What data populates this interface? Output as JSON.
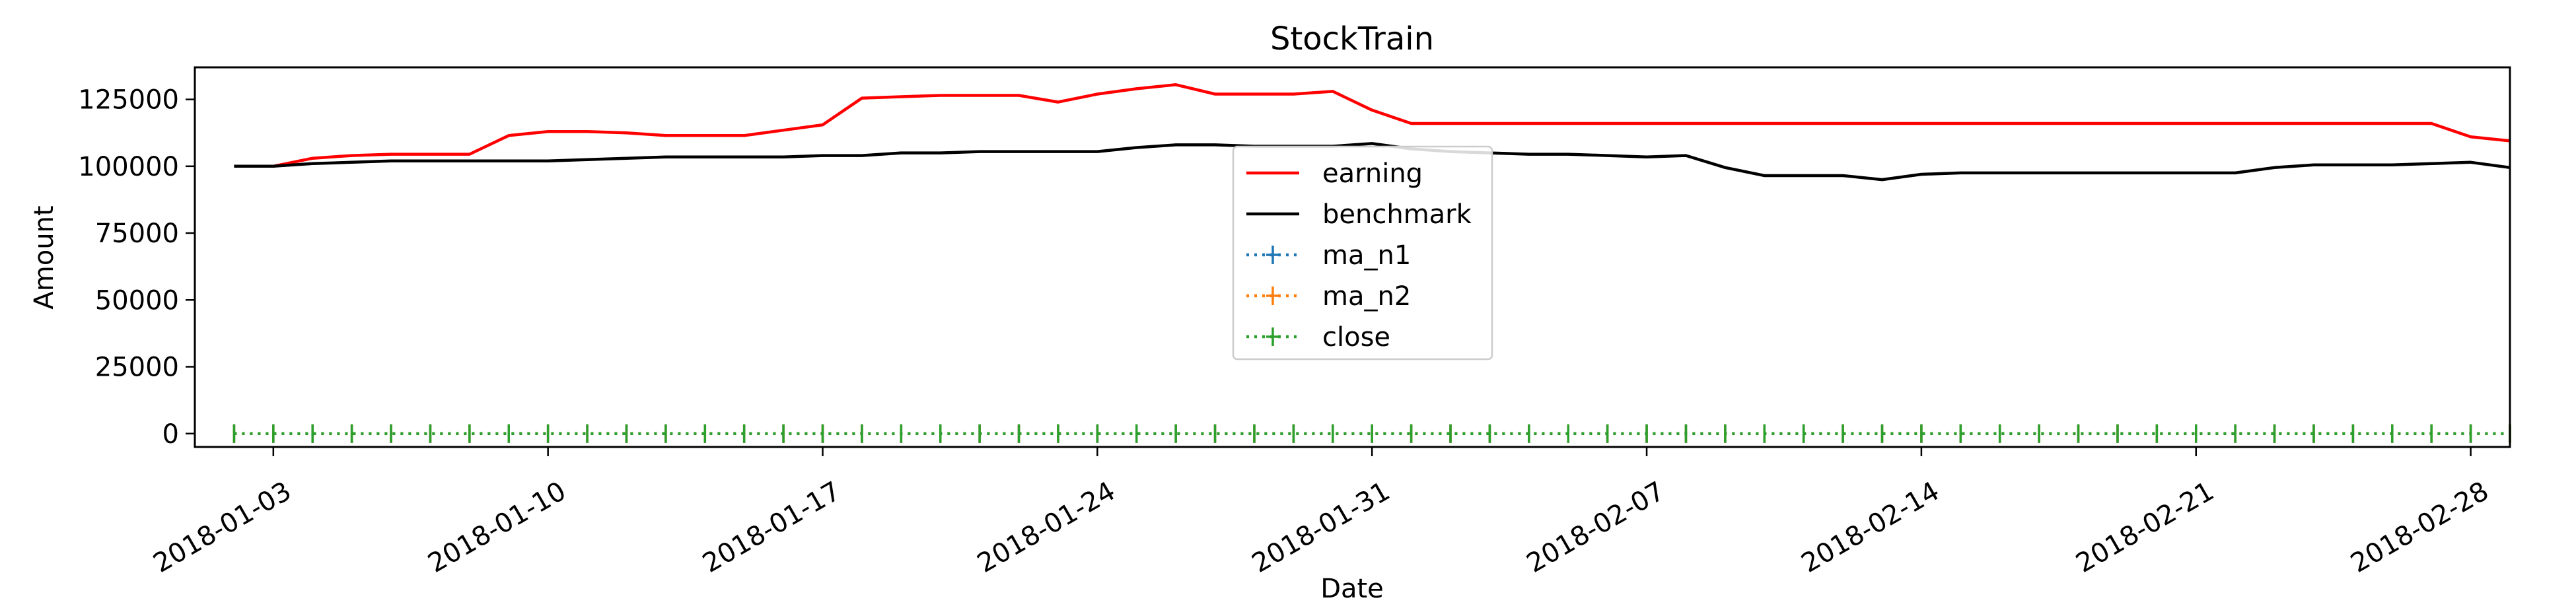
{
  "chart_data": {
    "type": "line",
    "title": "StockTrain",
    "xlabel": "Date",
    "ylabel": "Amount",
    "x_ticks": [
      "2018-01-03",
      "2018-01-10",
      "2018-01-17",
      "2018-01-24",
      "2018-01-31",
      "2018-02-07",
      "2018-02-14",
      "2018-02-21",
      "2018-02-28"
    ],
    "x_range_days": [
      0,
      59
    ],
    "x_tick_days": [
      2,
      9,
      16,
      23,
      30,
      37,
      44,
      51,
      58
    ],
    "ylim": [
      -5000,
      137000
    ],
    "y_ticks": [
      0,
      25000,
      50000,
      75000,
      100000,
      125000
    ],
    "y_tick_labels": [
      "0",
      "25000",
      "50000",
      "75000",
      "100000",
      "125000"
    ],
    "legend_position": "center",
    "x_days": [
      1,
      2,
      3,
      4,
      5,
      6,
      7,
      8,
      9,
      10,
      11,
      12,
      13,
      14,
      15,
      16,
      17,
      18,
      19,
      20,
      21,
      22,
      23,
      24,
      25,
      26,
      27,
      28,
      29,
      30,
      31,
      32,
      33,
      34,
      35,
      36,
      37,
      38,
      39,
      40,
      41,
      42,
      43,
      44,
      45,
      46,
      47,
      48,
      49,
      50,
      51,
      52,
      53,
      54,
      55,
      56,
      57,
      58,
      59
    ],
    "series": [
      {
        "name": "earning",
        "color": "#ff0000",
        "style": "solid",
        "values": [
          100000,
          100000,
          103000,
          104000,
          104500,
          104500,
          104500,
          111500,
          113000,
          113000,
          112500,
          111500,
          111500,
          111500,
          113500,
          115500,
          125500,
          126000,
          126500,
          126500,
          126500,
          124000,
          127000,
          129000,
          130500,
          127000,
          127000,
          127000,
          128000,
          121000,
          116000,
          116000,
          116000,
          116000,
          116000,
          116000,
          116000,
          116000,
          116000,
          116000,
          116000,
          116000,
          116000,
          116000,
          116000,
          116000,
          116000,
          116000,
          116000,
          116000,
          116000,
          116000,
          116000,
          116000,
          116000,
          116000,
          116000,
          111000,
          109500
        ]
      },
      {
        "name": "benchmark",
        "color": "#000000",
        "style": "solid",
        "values": [
          100000,
          100000,
          101000,
          101500,
          102000,
          102000,
          102000,
          102000,
          102000,
          102500,
          103000,
          103500,
          103500,
          103500,
          103500,
          104000,
          104000,
          105000,
          105000,
          105500,
          105500,
          105500,
          105500,
          107000,
          108000,
          108000,
          107500,
          107500,
          107500,
          108500,
          106500,
          105500,
          105000,
          104500,
          104500,
          104000,
          103500,
          104000,
          99500,
          96500,
          96500,
          96500,
          95000,
          97000,
          97500,
          97500,
          97500,
          97500,
          97500,
          97500,
          97500,
          97500,
          99500,
          100500,
          100500,
          100500,
          101000,
          101500,
          99500
        ]
      },
      {
        "name": "ma_n1",
        "color": "#1f77b4",
        "style": "dotted-marker",
        "values": [
          0,
          0,
          0,
          0,
          0,
          0,
          0,
          0,
          0,
          0,
          0,
          0,
          0,
          0,
          0,
          0,
          0,
          0,
          0,
          0,
          0,
          0,
          0,
          0,
          0,
          0,
          0,
          0,
          0,
          0,
          0,
          0,
          0,
          0,
          0,
          0,
          0,
          0,
          0,
          0,
          0,
          0,
          0,
          0,
          0,
          0,
          0,
          0,
          0,
          0,
          0,
          0,
          0,
          0,
          0,
          0,
          0,
          0,
          0
        ]
      },
      {
        "name": "ma_n2",
        "color": "#ff7f0e",
        "style": "dotted-marker",
        "values": [
          0,
          0,
          0,
          0,
          0,
          0,
          0,
          0,
          0,
          0,
          0,
          0,
          0,
          0,
          0,
          0,
          0,
          0,
          0,
          0,
          0,
          0,
          0,
          0,
          0,
          0,
          0,
          0,
          0,
          0,
          0,
          0,
          0,
          0,
          0,
          0,
          0,
          0,
          0,
          0,
          0,
          0,
          0,
          0,
          0,
          0,
          0,
          0,
          0,
          0,
          0,
          0,
          0,
          0,
          0,
          0,
          0,
          0,
          0
        ]
      },
      {
        "name": "close",
        "color": "#2ca02c",
        "style": "dotted-marker",
        "values": [
          0,
          0,
          0,
          0,
          0,
          0,
          0,
          0,
          0,
          0,
          0,
          0,
          0,
          0,
          0,
          0,
          0,
          0,
          0,
          0,
          0,
          0,
          0,
          0,
          0,
          0,
          0,
          0,
          0,
          0,
          0,
          0,
          0,
          0,
          0,
          0,
          0,
          0,
          0,
          0,
          0,
          0,
          0,
          0,
          0,
          0,
          0,
          0,
          0,
          0,
          0,
          0,
          0,
          0,
          0,
          0,
          0,
          0,
          0
        ]
      }
    ]
  }
}
